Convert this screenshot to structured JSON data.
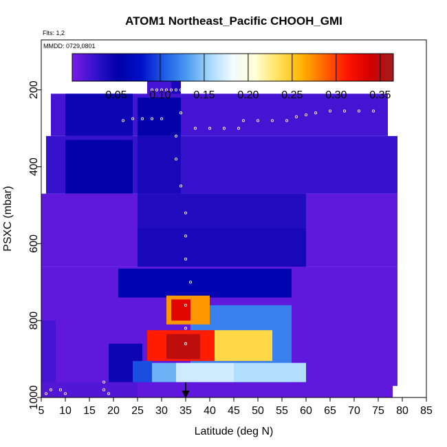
{
  "chart_data": {
    "type": "heatmap",
    "title": "ATOM1 Northeast_Pacific CHOOH_GMI",
    "subtitle_flights": "Flts: 1,2",
    "subtitle_dates": "MMDD: 0729,0801",
    "xlabel": "Latitude (deg N)",
    "ylabel": "PSXC (mbar)",
    "xlim": [
      5,
      85
    ],
    "ylim": [
      1000,
      70
    ],
    "y_reversed": true,
    "x_ticks": [
      5,
      10,
      15,
      20,
      25,
      30,
      35,
      40,
      45,
      50,
      55,
      60,
      65,
      70,
      75,
      80,
      85
    ],
    "y_ticks": [
      200,
      400,
      600,
      800,
      1000
    ],
    "colorbar": {
      "range": [
        0.0,
        0.365
      ],
      "tick_values": [
        0.05,
        0.1,
        0.15,
        0.2,
        0.25,
        0.3,
        0.35
      ],
      "tick_labels": [
        "0.05",
        "0.10",
        "0.15",
        "0.20",
        "0.25",
        "0.30",
        "0.35"
      ],
      "divider_values": [
        0.1,
        0.15,
        0.2,
        0.25,
        0.3,
        0.35
      ],
      "colors": [
        "#7a1be6",
        "#3412cc",
        "#0000a8",
        "#0010c8",
        "#1e5ae6",
        "#4a9bf0",
        "#a6d9fb",
        "#f2fbff",
        "#ffffd2",
        "#ffe15a",
        "#ffb400",
        "#ff6400",
        "#ff1400",
        "#d20000",
        "#a01e1e"
      ]
    },
    "arrow_latitude": 35,
    "cells": [
      {
        "lat": [
          27,
          32
        ],
        "p": [
          165,
          220
        ],
        "v": 0.02
      },
      {
        "lat": [
          32,
          34
        ],
        "p": [
          165,
          220
        ],
        "v": 0.04
      },
      {
        "lat": [
          7,
          77
        ],
        "p": [
          210,
          320
        ],
        "v": 0.02
      },
      {
        "lat": [
          10,
          24
        ],
        "p": [
          210,
          320
        ],
        "v": 0.045
      },
      {
        "lat": [
          25,
          34
        ],
        "p": [
          220,
          320
        ],
        "v": 0.05
      },
      {
        "lat": [
          6,
          79
        ],
        "p": [
          320,
          470
        ],
        "v": 0.025
      },
      {
        "lat": [
          10,
          24
        ],
        "p": [
          330,
          470
        ],
        "v": 0.05
      },
      {
        "lat": [
          25,
          34
        ],
        "p": [
          320,
          470
        ],
        "v": 0.04
      },
      {
        "lat": [
          5,
          79
        ],
        "p": [
          470,
          660
        ],
        "v": 0.01
      },
      {
        "lat": [
          25,
          60
        ],
        "p": [
          470,
          560
        ],
        "v": 0.035
      },
      {
        "lat": [
          25,
          60
        ],
        "p": [
          560,
          660
        ],
        "v": 0.04
      },
      {
        "lat": [
          5,
          79
        ],
        "p": [
          660,
          970
        ],
        "v": 0.01
      },
      {
        "lat": [
          5,
          25
        ],
        "p": [
          960,
          1000
        ],
        "v": 0.015
      },
      {
        "lat": [
          25,
          78
        ],
        "p": [
          960,
          1000
        ],
        "v": 0.01
      },
      {
        "lat": [
          5,
          8
        ],
        "p": [
          800,
          960
        ],
        "v": 0.02
      },
      {
        "lat": [
          19,
          26
        ],
        "p": [
          860,
          960
        ],
        "v": 0.045
      },
      {
        "lat": [
          21,
          57
        ],
        "p": [
          665,
          740
        ],
        "v": 0.06
      },
      {
        "lat": [
          58,
          78
        ],
        "p": [
          760,
          960
        ],
        "v": 0.01
      },
      {
        "lat": [
          36,
          57
        ],
        "p": [
          760,
          960
        ],
        "v": 0.12
      },
      {
        "lat": [
          41,
          53
        ],
        "p": [
          825,
          905
        ],
        "v": 0.24
      },
      {
        "lat": [
          31,
          40
        ],
        "p": [
          735,
          810
        ],
        "v": 0.27
      },
      {
        "lat": [
          32,
          36
        ],
        "p": [
          745,
          800
        ],
        "v": 0.33
      },
      {
        "lat": [
          27,
          41
        ],
        "p": [
          825,
          905
        ],
        "v": 0.31
      },
      {
        "lat": [
          31,
          38
        ],
        "p": [
          835,
          900
        ],
        "v": 0.35
      },
      {
        "lat": [
          24,
          28
        ],
        "p": [
          905,
          960
        ],
        "v": 0.1
      },
      {
        "lat": [
          28,
          33
        ],
        "p": [
          910,
          960
        ],
        "v": 0.14
      },
      {
        "lat": [
          33,
          45
        ],
        "p": [
          910,
          960
        ],
        "v": 0.17
      },
      {
        "lat": [
          45,
          60
        ],
        "p": [
          910,
          960
        ],
        "v": 0.16
      }
    ],
    "tracks": [
      [
        [
          28,
          200
        ],
        [
          29,
          200
        ],
        [
          30,
          200
        ],
        [
          31,
          200
        ],
        [
          32,
          200
        ],
        [
          33,
          200
        ]
      ],
      [
        [
          37,
          300
        ],
        [
          40,
          300
        ],
        [
          43,
          300
        ],
        [
          46,
          300
        ],
        [
          47,
          280
        ],
        [
          50,
          280
        ],
        [
          53,
          280
        ],
        [
          56,
          280
        ],
        [
          58,
          270
        ],
        [
          60,
          265
        ],
        [
          62,
          260
        ],
        [
          65,
          255
        ],
        [
          68,
          255
        ],
        [
          71,
          255
        ],
        [
          74,
          255
        ]
      ],
      [
        [
          22,
          280
        ],
        [
          24,
          275
        ],
        [
          26,
          275
        ],
        [
          28,
          275
        ],
        [
          30,
          275
        ]
      ],
      [
        [
          34,
          200
        ],
        [
          34,
          260
        ],
        [
          33,
          320
        ],
        [
          33,
          380
        ],
        [
          34,
          450
        ],
        [
          35,
          520
        ],
        [
          35,
          580
        ],
        [
          35,
          640
        ],
        [
          36,
          700
        ],
        [
          35,
          760
        ],
        [
          35,
          820
        ],
        [
          35,
          860
        ]
      ],
      [
        [
          18,
          960
        ],
        [
          18,
          980
        ],
        [
          19,
          990
        ],
        [
          9,
          980
        ],
        [
          10,
          990
        ],
        [
          7,
          980
        ],
        [
          6,
          990
        ]
      ]
    ]
  }
}
